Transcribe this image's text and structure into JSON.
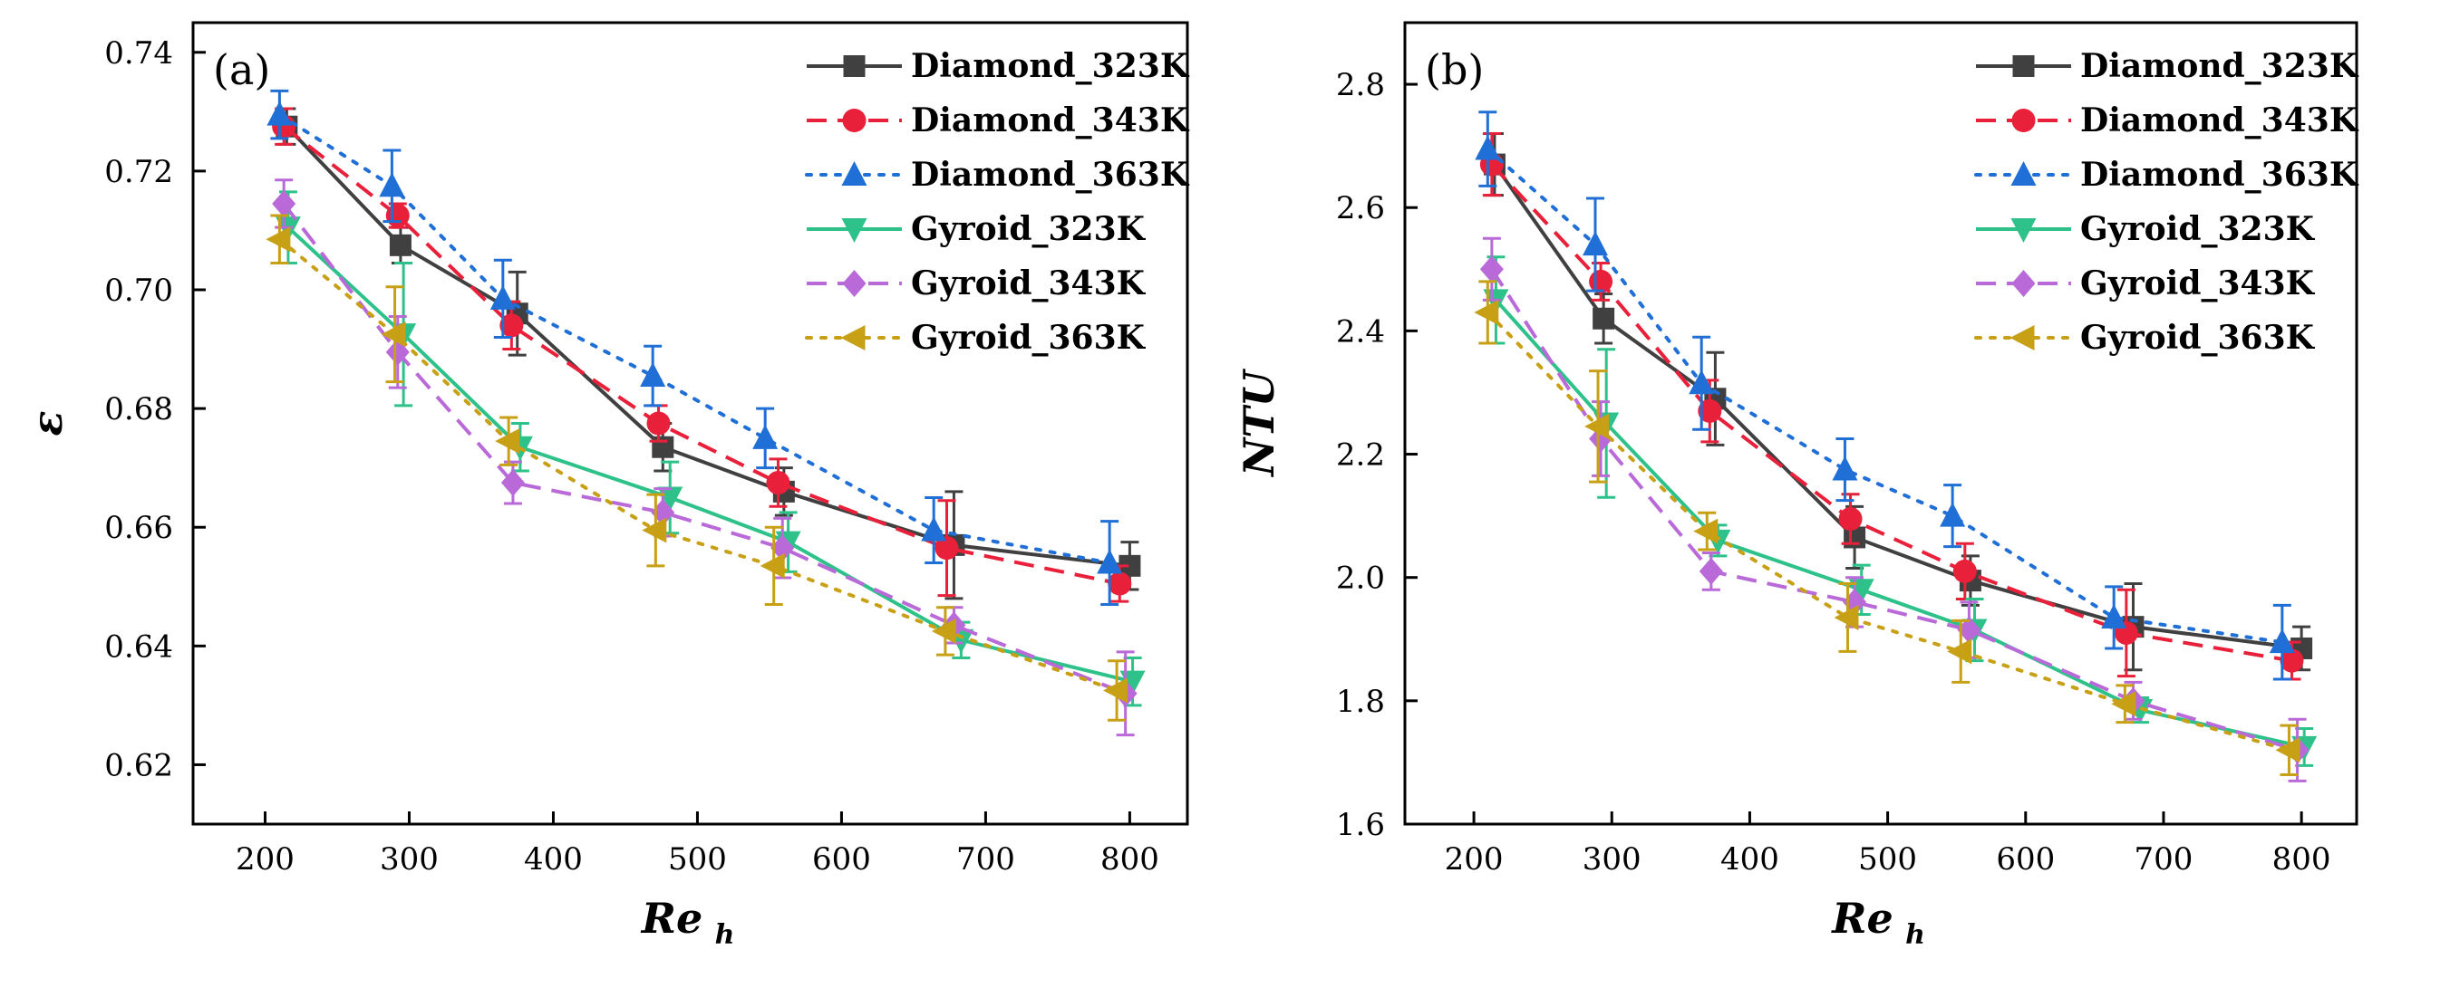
{
  "chart_data": [
    {
      "type": "line",
      "panel_label": "(a)",
      "xlabel": "Re",
      "xlabel_sub": "h",
      "ylabel": "ε",
      "xlim": [
        150,
        840
      ],
      "ylim": [
        0.61,
        0.745
      ],
      "xticks": [
        200,
        300,
        400,
        500,
        600,
        700,
        800
      ],
      "yticks": [
        0.62,
        0.64,
        0.66,
        0.68,
        0.7,
        0.72,
        0.74
      ],
      "ytick_labels": [
        "0.62",
        "0.64",
        "0.66",
        "0.68",
        "0.70",
        "0.72",
        "0.74"
      ],
      "legend_position": "top-right",
      "series": [
        {
          "name": "Diamond_323K",
          "color": "#404040",
          "dash": "solid",
          "marker": "square",
          "x": [
            215,
            294,
            375,
            476,
            560,
            678,
            800
          ],
          "y": [
            0.7275,
            0.7075,
            0.696,
            0.6735,
            0.666,
            0.657,
            0.6535
          ],
          "err": [
            0.003,
            0.003,
            0.007,
            0.004,
            0.004,
            0.009,
            0.004
          ]
        },
        {
          "name": "Diamond_343K",
          "color": "#e8203a",
          "dash": "dashed",
          "marker": "circle",
          "x": [
            213,
            292,
            371,
            473,
            556,
            673,
            793
          ],
          "y": [
            0.7275,
            0.7125,
            0.694,
            0.6775,
            0.6675,
            0.6565,
            0.6505
          ],
          "err": [
            0.003,
            0.002,
            0.004,
            0.003,
            0.004,
            0.008,
            0.003
          ]
        },
        {
          "name": "Diamond_363K",
          "color": "#1f6fd6",
          "dash": "dotted",
          "marker": "triangle-up",
          "x": [
            210,
            288,
            365,
            469,
            547,
            664,
            786
          ],
          "y": [
            0.7295,
            0.7175,
            0.6985,
            0.6855,
            0.675,
            0.6595,
            0.654
          ],
          "err": [
            0.004,
            0.006,
            0.0065,
            0.005,
            0.005,
            0.0055,
            0.007
          ]
        },
        {
          "name": "Gyroid_323K",
          "color": "#2ec28a",
          "dash": "solid",
          "marker": "triangle-down",
          "x": [
            216,
            296,
            377,
            481,
            563,
            683,
            802
          ],
          "y": [
            0.7105,
            0.6925,
            0.6735,
            0.665,
            0.6575,
            0.641,
            0.634
          ],
          "err": [
            0.006,
            0.012,
            0.004,
            0.006,
            0.005,
            0.003,
            0.004
          ]
        },
        {
          "name": "Gyroid_343K",
          "color": "#b96ad8",
          "dash": "dashed",
          "marker": "diamond",
          "x": [
            213,
            292,
            372,
            476,
            559,
            678,
            797
          ],
          "y": [
            0.7145,
            0.6895,
            0.6675,
            0.6625,
            0.6565,
            0.6435,
            0.632
          ],
          "err": [
            0.004,
            0.006,
            0.0035,
            0.004,
            0.005,
            0.003,
            0.007
          ]
        },
        {
          "name": "Gyroid_363K",
          "color": "#c8a016",
          "dash": "dotted",
          "marker": "triangle-left",
          "x": [
            210,
            290,
            369,
            471,
            553,
            672,
            791
          ],
          "y": [
            0.7085,
            0.6925,
            0.6745,
            0.6595,
            0.6535,
            0.6425,
            0.6325
          ],
          "err": [
            0.004,
            0.008,
            0.004,
            0.006,
            0.0065,
            0.004,
            0.005
          ]
        }
      ]
    },
    {
      "type": "line",
      "panel_label": "(b)",
      "xlabel": "Re",
      "xlabel_sub": "h",
      "ylabel": "NTU",
      "xlim": [
        150,
        840
      ],
      "ylim": [
        1.6,
        2.9
      ],
      "xticks": [
        200,
        300,
        400,
        500,
        600,
        700,
        800
      ],
      "yticks": [
        1.6,
        1.8,
        2.0,
        2.2,
        2.4,
        2.6,
        2.8
      ],
      "ytick_labels": [
        "1.6",
        "1.8",
        "2.0",
        "2.2",
        "2.4",
        "2.6",
        "2.8"
      ],
      "legend_position": "top-right",
      "series": [
        {
          "name": "Diamond_323K",
          "color": "#404040",
          "dash": "solid",
          "marker": "square",
          "x": [
            215,
            294,
            375,
            476,
            560,
            678,
            800
          ],
          "y": [
            2.67,
            2.42,
            2.29,
            2.065,
            1.995,
            1.92,
            1.885
          ],
          "err": [
            0.05,
            0.04,
            0.075,
            0.05,
            0.04,
            0.07,
            0.035
          ]
        },
        {
          "name": "Diamond_343K",
          "color": "#e8203a",
          "dash": "dashed",
          "marker": "circle",
          "x": [
            213,
            292,
            371,
            473,
            556,
            673,
            793
          ],
          "y": [
            2.67,
            2.48,
            2.27,
            2.095,
            2.01,
            1.91,
            1.865
          ],
          "err": [
            0.05,
            0.03,
            0.05,
            0.04,
            0.045,
            0.07,
            0.03
          ]
        },
        {
          "name": "Diamond_363K",
          "color": "#1f6fd6",
          "dash": "dotted",
          "marker": "triangle-up",
          "x": [
            210,
            288,
            365,
            469,
            547,
            664,
            786
          ],
          "y": [
            2.695,
            2.54,
            2.315,
            2.175,
            2.1,
            1.935,
            1.895
          ],
          "err": [
            0.06,
            0.075,
            0.075,
            0.05,
            0.05,
            0.05,
            0.06
          ]
        },
        {
          "name": "Gyroid_323K",
          "color": "#2ec28a",
          "dash": "solid",
          "marker": "triangle-down",
          "x": [
            216,
            296,
            377,
            481,
            563,
            683,
            802
          ],
          "y": [
            2.45,
            2.25,
            2.06,
            1.98,
            1.915,
            1.785,
            1.725
          ],
          "err": [
            0.07,
            0.12,
            0.025,
            0.04,
            0.05,
            0.02,
            0.03
          ]
        },
        {
          "name": "Gyroid_343K",
          "color": "#b96ad8",
          "dash": "dashed",
          "marker": "diamond",
          "x": [
            213,
            292,
            372,
            476,
            559,
            678,
            797
          ],
          "y": [
            2.5,
            2.225,
            2.01,
            1.96,
            1.915,
            1.8,
            1.72
          ],
          "err": [
            0.05,
            0.06,
            0.03,
            0.04,
            0.045,
            0.03,
            0.05
          ]
        },
        {
          "name": "Gyroid_363K",
          "color": "#c8a016",
          "dash": "dotted",
          "marker": "triangle-left",
          "x": [
            210,
            290,
            369,
            471,
            553,
            672,
            791
          ],
          "y": [
            2.43,
            2.245,
            2.075,
            1.935,
            1.88,
            1.795,
            1.72
          ],
          "err": [
            0.05,
            0.09,
            0.03,
            0.055,
            0.05,
            0.03,
            0.04
          ]
        }
      ]
    }
  ]
}
